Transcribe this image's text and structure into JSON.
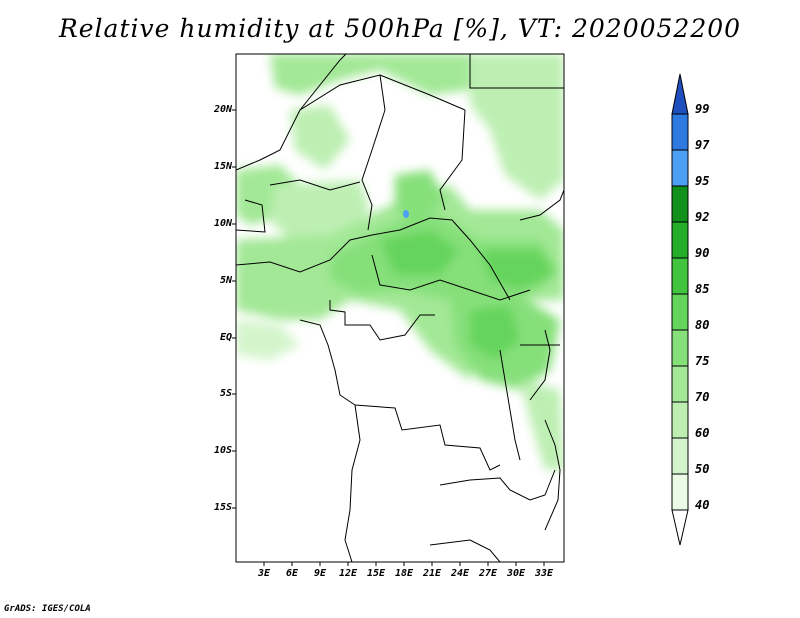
{
  "title": "Relative humidity at 500hPa [%], VT: 2020052200",
  "credit": "GrADS: IGES/COLA",
  "map": {
    "lat_ticks": [
      "20N",
      "15N",
      "10N",
      "5N",
      "EQ",
      "5S",
      "10S",
      "15S"
    ],
    "lon_ticks": [
      "3E",
      "6E",
      "9E",
      "12E",
      "15E",
      "18E",
      "21E",
      "24E",
      "27E",
      "30E",
      "33E"
    ]
  },
  "colorbar": {
    "levels": [
      "40",
      "50",
      "60",
      "70",
      "75",
      "80",
      "85",
      "90",
      "92",
      "95",
      "97",
      "99"
    ],
    "colors": [
      "#ffffff",
      "#ebfbe6",
      "#d4f5cc",
      "#bdefb2",
      "#a3e896",
      "#86e07a",
      "#65d45c",
      "#43c43f",
      "#25ad2a",
      "#11901c",
      "#4c9ff2",
      "#2f7ae0",
      "#1f4fbf"
    ]
  }
}
